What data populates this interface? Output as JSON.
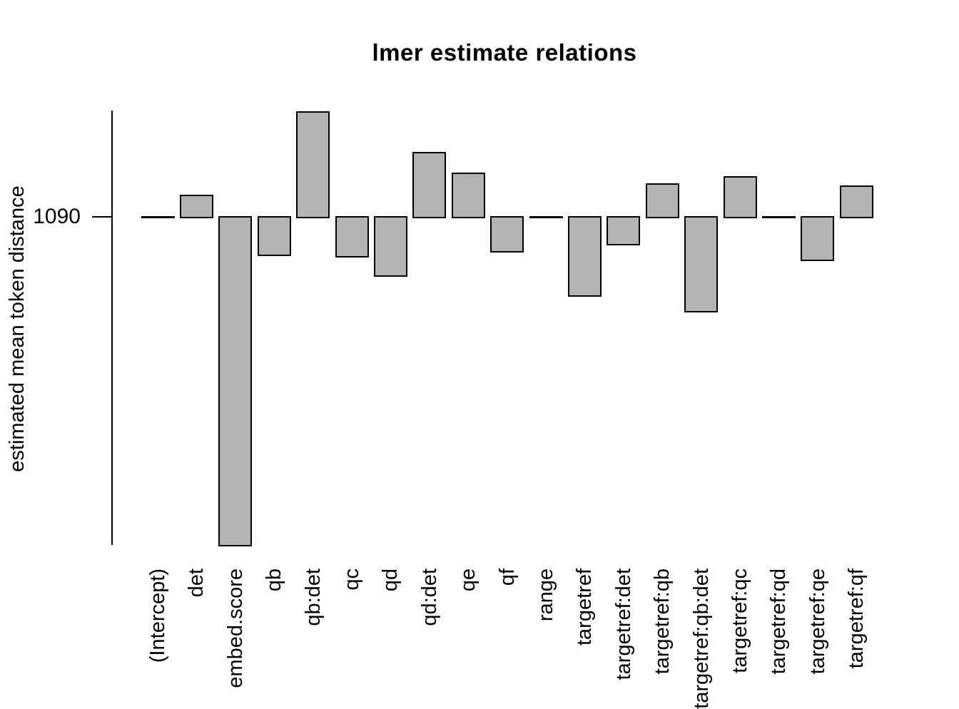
{
  "chart_data": {
    "type": "bar",
    "title": "lmer estimate relations",
    "xlabel": "",
    "ylabel": "estimated mean token distance",
    "categories": [
      "(Intercept)",
      "det",
      "embed.score",
      "qb",
      "qb:det",
      "qc",
      "qd",
      "qd:det",
      "qe",
      "qf",
      "range",
      "targetref",
      "targetref:det",
      "targetref:qb",
      "targetref:qb:det",
      "targetref:qc",
      "targetref:qd",
      "targetref:qe",
      "targetref:qf"
    ],
    "values": [
      1090,
      1120,
      630,
      1037,
      1237,
      1035,
      1008,
      1180,
      1151,
      1042,
      1090,
      980,
      1052,
      1136,
      958,
      1146,
      1090,
      1030,
      1133
    ],
    "baseline": 1090,
    "ytick_labels": [
      "1090"
    ],
    "ylim": [
      630,
      1239
    ],
    "grid": false,
    "legend": null,
    "bar_color": "#b3b3b3",
    "bar_border_color": "#000000",
    "axis_color": "#000000",
    "background": "#ffffff"
  }
}
